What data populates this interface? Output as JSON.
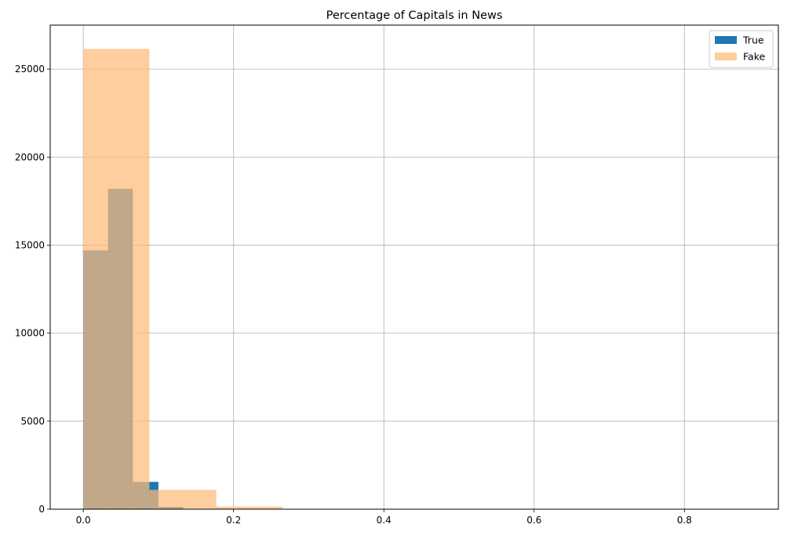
{
  "chart_data": {
    "type": "bar",
    "title": "Percentage of Capitals in News",
    "xlabel": "",
    "ylabel": "",
    "xlim": [
      -0.044,
      0.925
    ],
    "ylim": [
      0,
      27500
    ],
    "x_ticks": [
      0.0,
      0.2,
      0.4,
      0.6,
      0.8
    ],
    "x_tick_labels": [
      "0.0",
      "0.2",
      "0.4",
      "0.6",
      "0.8"
    ],
    "y_ticks": [
      0,
      5000,
      10000,
      15000,
      20000,
      25000
    ],
    "y_tick_labels": [
      "0",
      "5000",
      "10000",
      "15000",
      "20000",
      "25000"
    ],
    "grid": true,
    "legend_position": "top-right",
    "series": [
      {
        "name": "True",
        "color": "#1f77b4",
        "opacity": 1.0,
        "bins": [
          {
            "x0": 0.0,
            "x1": 0.033,
            "count": 14700
          },
          {
            "x0": 0.033,
            "x1": 0.066,
            "count": 18200
          },
          {
            "x0": 0.066,
            "x1": 0.1,
            "count": 1550
          },
          {
            "x0": 0.1,
            "x1": 0.133,
            "count": 130
          },
          {
            "x0": 0.133,
            "x1": 0.166,
            "count": 20
          }
        ]
      },
      {
        "name": "Fake",
        "color": "#ffbb78",
        "opacity": 0.72,
        "bins": [
          {
            "x0": 0.0,
            "x1": 0.088,
            "count": 26150
          },
          {
            "x0": 0.088,
            "x1": 0.177,
            "count": 1100
          },
          {
            "x0": 0.177,
            "x1": 0.265,
            "count": 150
          },
          {
            "x0": 0.265,
            "x1": 0.354,
            "count": 20
          },
          {
            "x0": 0.354,
            "x1": 0.442,
            "count": 5
          },
          {
            "x0": 0.442,
            "x1": 0.53,
            "count": 3
          },
          {
            "x0": 0.53,
            "x1": 0.619,
            "count": 2
          },
          {
            "x0": 0.619,
            "x1": 0.707,
            "count": 1
          },
          {
            "x0": 0.707,
            "x1": 0.796,
            "count": 1
          },
          {
            "x0": 0.796,
            "x1": 0.884,
            "count": 1
          }
        ]
      }
    ]
  }
}
